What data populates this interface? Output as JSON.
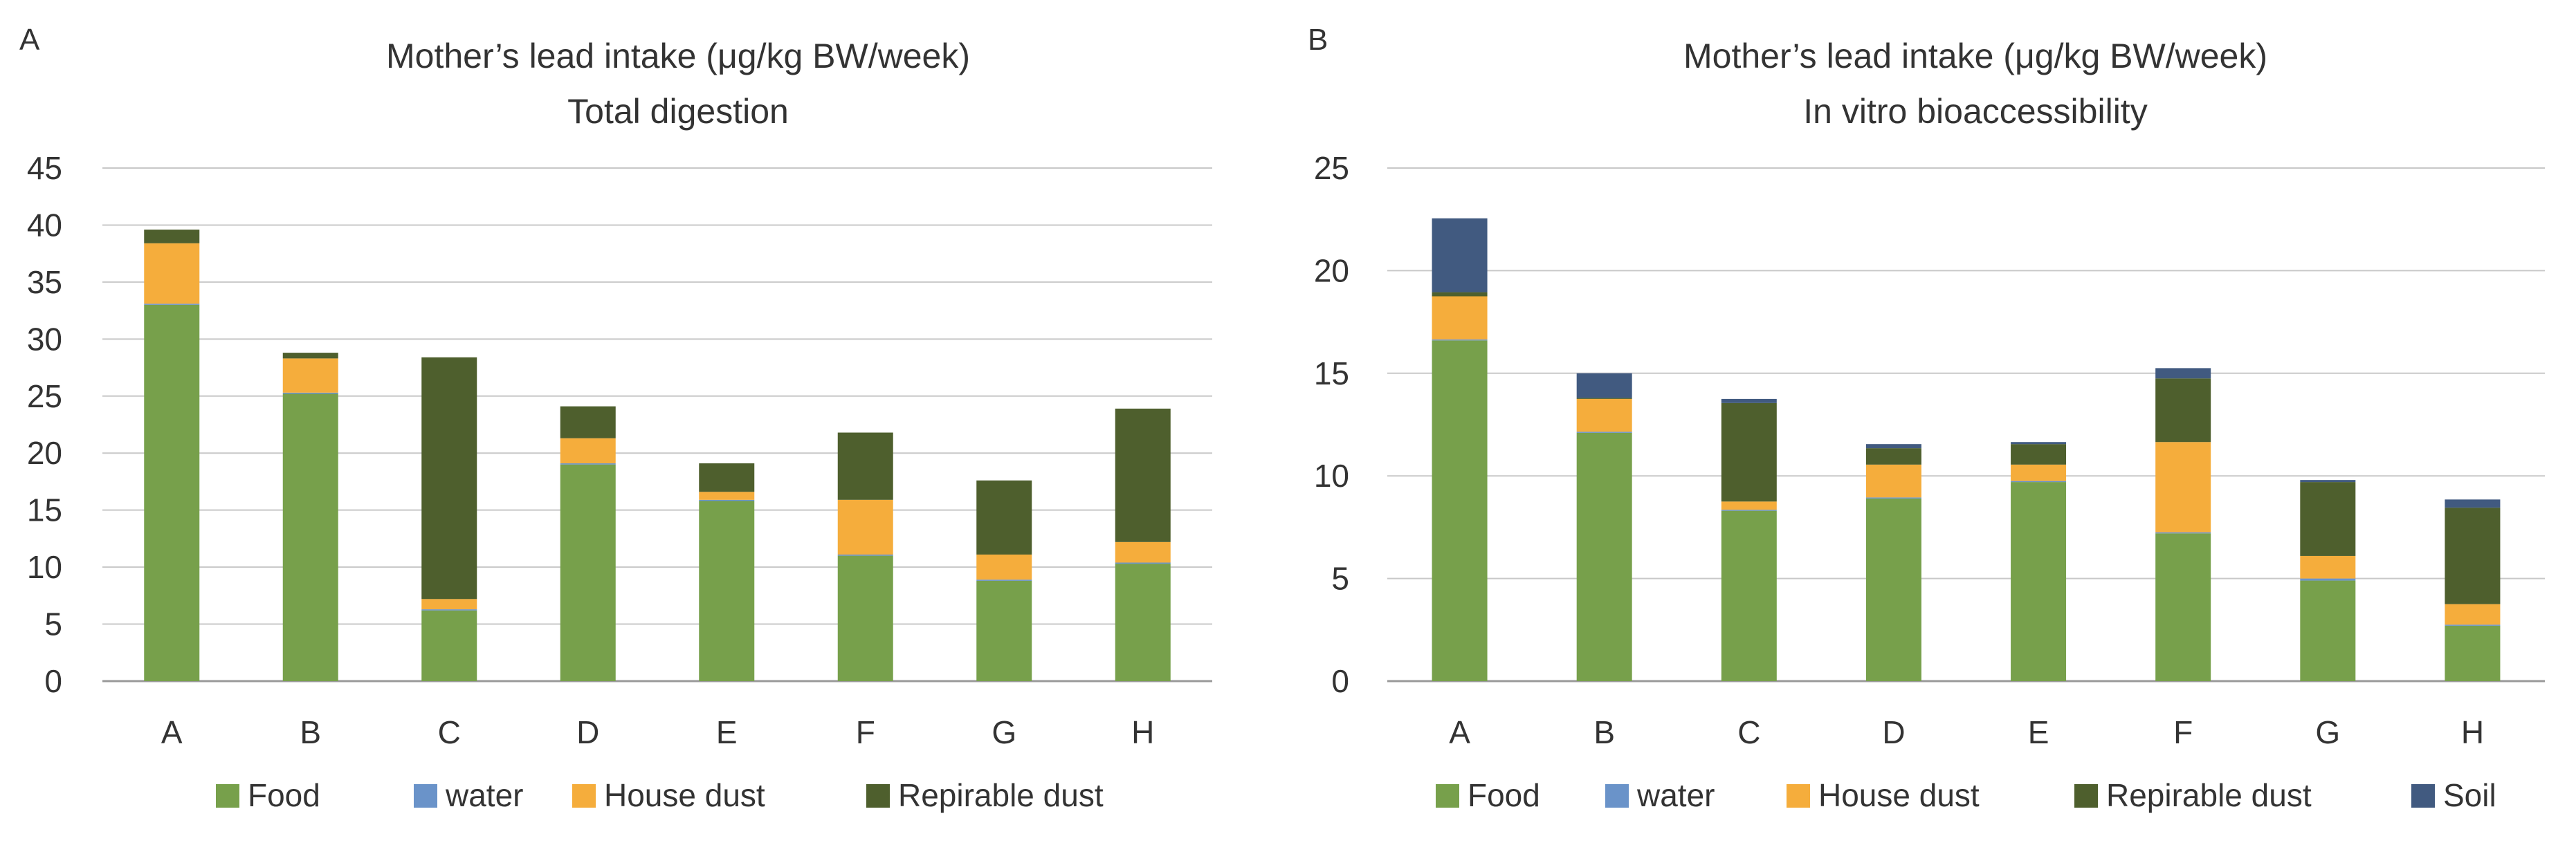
{
  "colors": {
    "Food": "#77a04b",
    "water": "#6a93c9",
    "House dust": "#f5ad3c",
    "Repirable dust": "#4e5f2d",
    "Soil": "#415a80",
    "grid": "#c8c8c8",
    "axis": "#999999"
  },
  "chart_data": [
    {
      "panel_label": "A",
      "type": "bar",
      "stacked": true,
      "title": "Mother’s lead intake (μg/kg BW/week)",
      "subtitle": "Total digestion",
      "categories": [
        "A",
        "B",
        "C",
        "D",
        "E",
        "F",
        "G",
        "H"
      ],
      "series": [
        {
          "name": "Food",
          "values": [
            33.0,
            25.2,
            6.2,
            19.0,
            15.8,
            11.0,
            8.8,
            10.3
          ]
        },
        {
          "name": "water",
          "values": [
            0.1,
            0.1,
            0.1,
            0.1,
            0.1,
            0.1,
            0.1,
            0.1
          ]
        },
        {
          "name": "House dust",
          "values": [
            5.3,
            3.0,
            0.9,
            2.2,
            0.7,
            4.8,
            2.2,
            1.8
          ]
        },
        {
          "name": "Repirable dust",
          "values": [
            1.2,
            0.5,
            21.2,
            2.8,
            2.5,
            5.9,
            6.5,
            11.7
          ]
        }
      ],
      "y_ticks": [
        "0",
        "5",
        "10",
        "15",
        "20",
        "25",
        "30",
        "35",
        "40",
        "45"
      ],
      "ylim": [
        0,
        45
      ],
      "grid": true,
      "legend_position": "bottom"
    },
    {
      "panel_label": "B",
      "type": "bar",
      "stacked": true,
      "title": "Mother’s lead intake (μg/kg BW/week)",
      "subtitle": "In vitro bioaccessibility",
      "categories": [
        "A",
        "B",
        "C",
        "D",
        "E",
        "F",
        "G",
        "H"
      ],
      "series": [
        {
          "name": "Food",
          "values": [
            16.6,
            12.1,
            8.3,
            8.9,
            9.7,
            7.2,
            4.9,
            2.7
          ]
        },
        {
          "name": "water",
          "values": [
            0.05,
            0.05,
            0.05,
            0.05,
            0.05,
            0.05,
            0.1,
            0.05
          ]
        },
        {
          "name": "House dust",
          "values": [
            2.1,
            1.6,
            0.4,
            1.6,
            0.8,
            4.4,
            1.1,
            1.0
          ]
        },
        {
          "name": "Repirable dust",
          "values": [
            0.2,
            0.05,
            4.8,
            0.8,
            1.0,
            3.1,
            3.6,
            4.7
          ]
        },
        {
          "name": "Soil",
          "values": [
            3.6,
            1.2,
            0.2,
            0.2,
            0.1,
            0.5,
            0.1,
            0.4
          ]
        }
      ],
      "y_ticks": [
        "0",
        "5",
        "10",
        "15",
        "20",
        "25"
      ],
      "ylim": [
        0,
        25
      ],
      "grid": true,
      "legend_position": "bottom"
    }
  ]
}
